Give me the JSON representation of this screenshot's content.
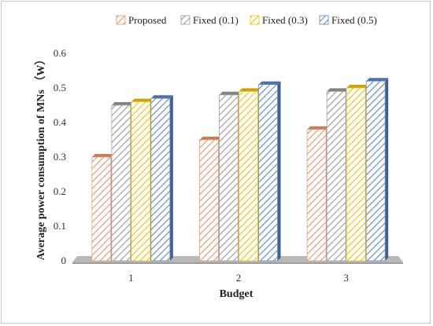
{
  "chart_data": {
    "type": "bar",
    "title": "",
    "xlabel": "Budget",
    "ylabel": "Average power consumption of MNs （W）",
    "categories": [
      "1",
      "2",
      "3"
    ],
    "yticks": [
      "0",
      "0.1",
      "0.2",
      "0.3",
      "0.4",
      "0.5",
      "0.6"
    ],
    "ylim": [
      0,
      0.6
    ],
    "grid": false,
    "legend_position": "top",
    "series": [
      {
        "name": "Proposed",
        "values": [
          0.3,
          0.35,
          0.38
        ],
        "color": "#e8956a"
      },
      {
        "name": "Fixed (0.1)",
        "values": [
          0.45,
          0.48,
          0.49
        ],
        "color": "#9a9a9a"
      },
      {
        "name": "Fixed (0.3)",
        "values": [
          0.46,
          0.49,
          0.5
        ],
        "color": "#f2c200"
      },
      {
        "name": "Fixed (0.5)",
        "values": [
          0.47,
          0.51,
          0.52
        ],
        "color": "#5b86c4"
      }
    ]
  }
}
